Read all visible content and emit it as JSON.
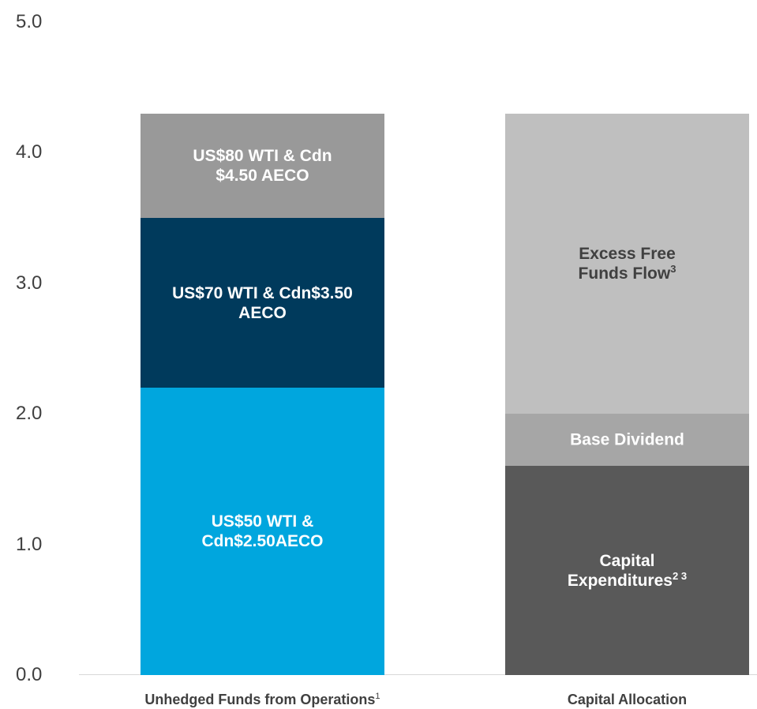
{
  "chart_data": {
    "type": "stacked_bar",
    "categories": [
      "Unhedged Funds from Operations",
      "Capital Allocation"
    ],
    "category_footnotes": [
      "1",
      null
    ],
    "series": [
      {
        "name": "US$50 WTI & Cdn$2.50AECO",
        "color": "#00a6de",
        "label_color": "#ffffff",
        "values": [
          2.2,
          null
        ]
      },
      {
        "name": "US$70 WTI & Cdn$3.50 AECO",
        "color": "#003a5c",
        "label_color": "#ffffff",
        "values": [
          1.3,
          null
        ]
      },
      {
        "name": "US$80 WTI & Cdn $4.50 AECO",
        "color": "#999999",
        "label_color": "#ffffff",
        "values": [
          0.8,
          null
        ]
      },
      {
        "name": "Capital Expenditures",
        "footnote": "2 3",
        "color": "#595959",
        "label_color": "#ffffff",
        "values": [
          null,
          1.6
        ]
      },
      {
        "name": "Base Dividend",
        "color": "#a6a6a6",
        "label_color": "#ffffff",
        "values": [
          null,
          0.4
        ]
      },
      {
        "name": "Excess Free Funds Flow",
        "footnote": "3",
        "color": "#bfbfbf",
        "label_color": "#404040",
        "values": [
          null,
          2.3
        ]
      }
    ],
    "ylim": [
      0,
      5
    ],
    "yticks": [
      {
        "value": 0,
        "label": "0.0"
      },
      {
        "value": 1,
        "label": "1.0"
      },
      {
        "value": 2,
        "label": "2.0"
      },
      {
        "value": 3,
        "label": "3.0"
      },
      {
        "value": 4,
        "label": "4.0"
      },
      {
        "value": 5,
        "label": "5.0"
      }
    ]
  }
}
